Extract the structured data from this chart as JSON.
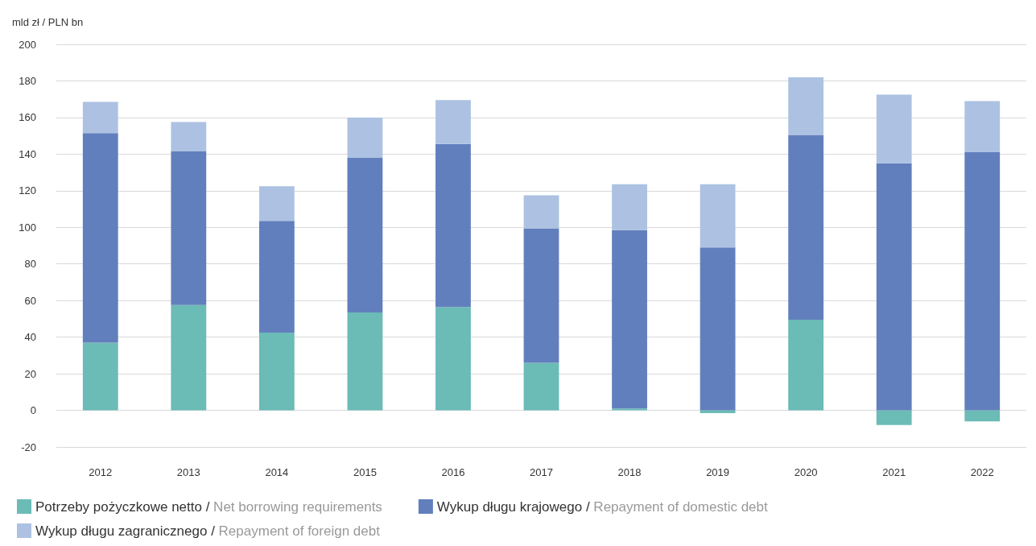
{
  "chart_data": {
    "type": "bar",
    "stacked": true,
    "ylabel": "mld zł / PLN bn",
    "categories": [
      "2012",
      "2013",
      "2014",
      "2015",
      "2016",
      "2017",
      "2018",
      "2019",
      "2020",
      "2021",
      "2022"
    ],
    "series": [
      {
        "name": "Potrzeby pożyczkowe netto / Net borrowing requirements",
        "color": "#6bbbb6",
        "values": [
          37,
          57.5,
          42.5,
          53.5,
          56.5,
          26,
          1,
          -1.5,
          49.5,
          -8,
          -6
        ]
      },
      {
        "name": "Wykup długu krajowego / Repayment of domestic debt",
        "color": "#627fbd",
        "values": [
          114.5,
          84,
          61,
          84.5,
          89,
          73.5,
          97.5,
          89,
          101,
          135,
          141
        ]
      },
      {
        "name": "Wykup długu zagranicznego / Repayment of foreign debt",
        "color": "#adc2e2",
        "values": [
          17,
          16,
          19,
          22,
          24,
          18,
          25,
          34.5,
          31.5,
          37.5,
          28
        ]
      }
    ],
    "ylim": [
      -20,
      200
    ],
    "yticks": [
      -20,
      0,
      20,
      40,
      60,
      80,
      100,
      120,
      140,
      160,
      180,
      200
    ],
    "grid": "y",
    "legend": "bottom left"
  }
}
